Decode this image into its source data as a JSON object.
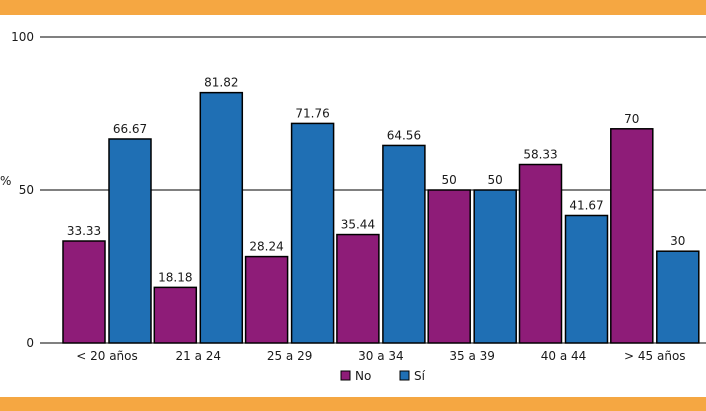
{
  "chart_data": {
    "type": "bar",
    "title": "",
    "xlabel": "",
    "ylabel": "%",
    "ylim": [
      0,
      100
    ],
    "yticks": [
      "0",
      "50",
      "100"
    ],
    "grid": true,
    "legend_position": "bottom-center",
    "categories": [
      "< 20 años",
      "21 a 24",
      "25 a 29",
      "30 a 34",
      "35 a 39",
      "40 a 44",
      "> 45 años"
    ],
    "series": [
      {
        "name": "No",
        "color": "#8e1c78",
        "values": [
          33.33,
          18.18,
          28.24,
          35.44,
          50,
          58.33,
          70
        ],
        "labels": [
          "33.33",
          "18.18",
          "28.24",
          "35.44",
          "50",
          "58.33",
          "70"
        ]
      },
      {
        "name": "Sí",
        "color": "#1f6fb4",
        "values": [
          66.67,
          81.82,
          71.76,
          64.56,
          50,
          41.67,
          30
        ],
        "labels": [
          "66.67",
          "81.82",
          "71.76",
          "64.56",
          "50",
          "41.67",
          "30"
        ]
      }
    ]
  },
  "colors": {
    "band": "#f5a742",
    "axis": "#000000"
  }
}
